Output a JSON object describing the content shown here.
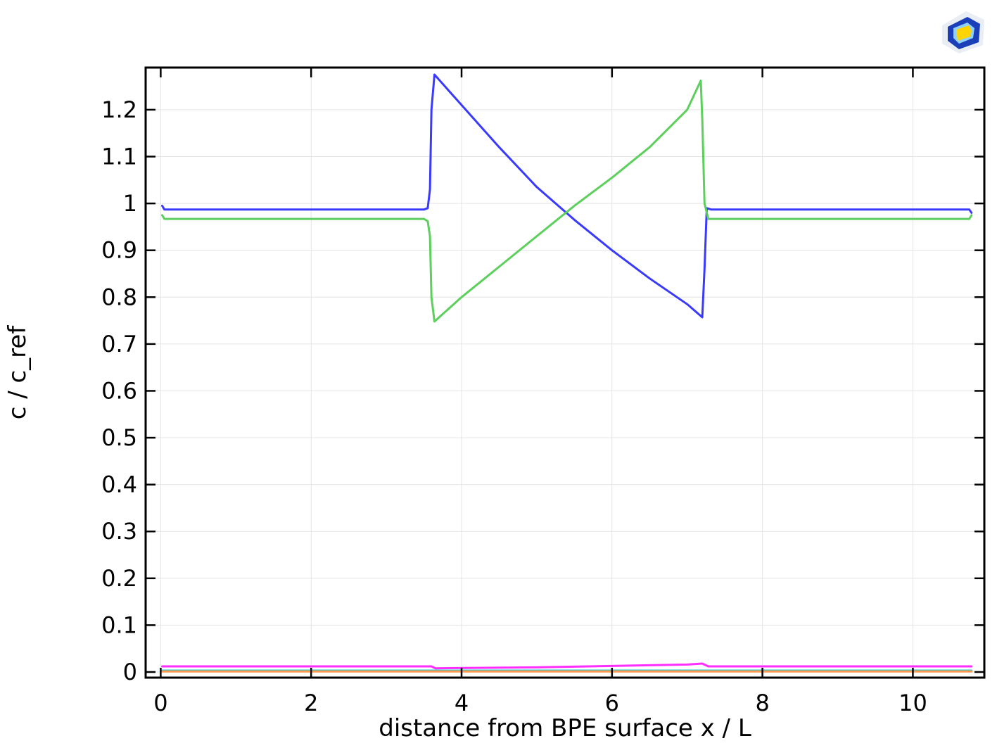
{
  "chart_data": {
    "type": "line",
    "title": "",
    "xlabel": "distance from BPE surface x / L",
    "ylabel": "c / c_ref",
    "xlim": [
      -0.2,
      10.95
    ],
    "ylim": [
      -0.012,
      1.29
    ],
    "xticks": [
      0,
      2,
      4,
      6,
      8,
      10
    ],
    "yticks": [
      0,
      0.1,
      0.2,
      0.3,
      0.4,
      0.5,
      0.6,
      0.7,
      0.8,
      0.9,
      1,
      1.1,
      1.2
    ],
    "grid": true,
    "legend": "none",
    "series": [
      {
        "color": "#3a3aff",
        "points": [
          [
            0.02,
            0.995
          ],
          [
            0.05,
            0.987
          ],
          [
            3.5,
            0.987
          ],
          [
            3.55,
            0.99
          ],
          [
            3.58,
            1.03
          ],
          [
            3.6,
            1.2
          ],
          [
            3.64,
            1.275
          ],
          [
            4.0,
            1.21
          ],
          [
            4.5,
            1.12
          ],
          [
            5.0,
            1.035
          ],
          [
            5.5,
            0.965
          ],
          [
            6.0,
            0.9
          ],
          [
            6.5,
            0.84
          ],
          [
            7.0,
            0.785
          ],
          [
            7.2,
            0.757
          ],
          [
            7.23,
            0.86
          ],
          [
            7.26,
            0.99
          ],
          [
            7.32,
            0.987
          ],
          [
            10.75,
            0.987
          ],
          [
            10.78,
            0.98
          ]
        ]
      },
      {
        "color": "#5ccf5c",
        "points": [
          [
            0.02,
            0.975
          ],
          [
            0.05,
            0.967
          ],
          [
            3.5,
            0.967
          ],
          [
            3.55,
            0.962
          ],
          [
            3.58,
            0.93
          ],
          [
            3.6,
            0.8
          ],
          [
            3.64,
            0.748
          ],
          [
            4.0,
            0.8
          ],
          [
            4.5,
            0.865
          ],
          [
            5.0,
            0.93
          ],
          [
            5.5,
            0.995
          ],
          [
            6.0,
            1.055
          ],
          [
            6.5,
            1.12
          ],
          [
            7.0,
            1.2
          ],
          [
            7.18,
            1.262
          ],
          [
            7.2,
            1.18
          ],
          [
            7.23,
            1.0
          ],
          [
            7.28,
            0.967
          ],
          [
            10.75,
            0.967
          ],
          [
            10.78,
            0.975
          ]
        ]
      },
      {
        "color": "#ff2dff",
        "points": [
          [
            0.02,
            0.012
          ],
          [
            3.6,
            0.012
          ],
          [
            3.65,
            0.008
          ],
          [
            5.0,
            0.01
          ],
          [
            6.0,
            0.013
          ],
          [
            7.0,
            0.016
          ],
          [
            7.2,
            0.018
          ],
          [
            7.28,
            0.012
          ],
          [
            10.78,
            0.012
          ]
        ]
      },
      {
        "color": "#28c8c8",
        "points": [
          [
            0.02,
            0.003
          ],
          [
            10.78,
            0.003
          ]
        ]
      },
      {
        "color": "#ff9a50",
        "points": [
          [
            0.02,
            0.001
          ],
          [
            10.78,
            0.001
          ]
        ]
      }
    ]
  },
  "logo": {
    "name": "app-logo-icon",
    "colors": [
      "#1a3fb8",
      "#ffd400",
      "#8fd0ff"
    ]
  }
}
